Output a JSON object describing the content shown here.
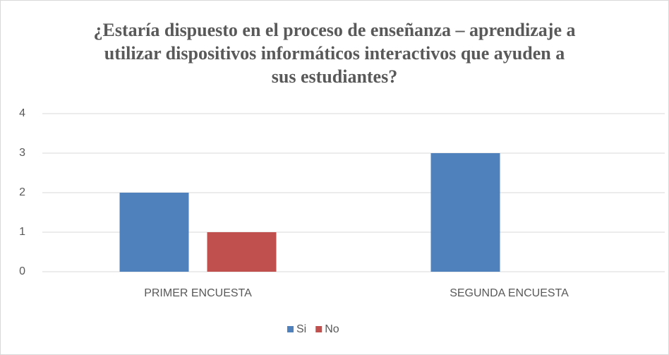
{
  "chart_data": {
    "type": "bar",
    "title": "¿Estaría dispuesto en el proceso de enseñanza – aprendizaje a utilizar dispositivos informáticos interactivos que ayuden a sus estudiantes?",
    "categories": [
      "PRIMER ENCUESTA",
      "SEGUNDA ENCUESTA"
    ],
    "series": [
      {
        "name": "Si",
        "color": "#4f81bd",
        "values": [
          2,
          3
        ]
      },
      {
        "name": "No",
        "color": "#c0504d",
        "values": [
          1,
          0
        ]
      }
    ],
    "ylim": [
      0,
      4
    ],
    "yticks": [
      0,
      1,
      2,
      3,
      4
    ],
    "grid": true,
    "legend": "bottom"
  }
}
